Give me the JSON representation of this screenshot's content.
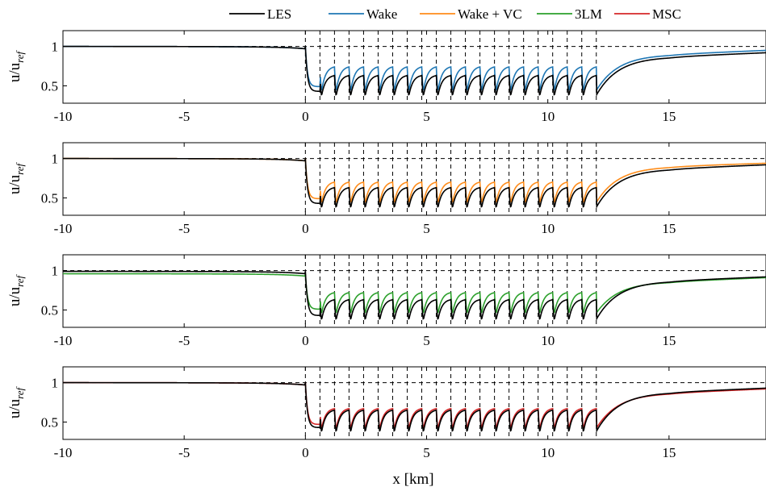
{
  "chart_data": {
    "type": "line",
    "xlabel": "x [km]",
    "ylabel": "u/u",
    "ylabel_sub": "ref",
    "xlim": [
      -10,
      19
    ],
    "ylim": [
      0.28,
      1.2
    ],
    "xticks": [
      "-10",
      "-5",
      "0",
      "5",
      "10",
      "15"
    ],
    "xtick_values": [
      -10,
      -5,
      0,
      5,
      10,
      15
    ],
    "yticks": [
      "0.5",
      "1"
    ],
    "ytick_values": [
      0.5,
      1
    ],
    "reference_line_y": 1.0,
    "turbine_rows_x": [
      0,
      0.6,
      1.2,
      1.8,
      2.4,
      3.0,
      3.6,
      4.2,
      4.8,
      5.4,
      6.0,
      6.6,
      7.2,
      7.8,
      8.4,
      9.0,
      9.6,
      10.2,
      10.8,
      11.4,
      12.0
    ],
    "legend": {
      "placement": "top",
      "entries": [
        {
          "label": "LES",
          "color": "#000000"
        },
        {
          "label": "Wake",
          "color": "#1f77b4"
        },
        {
          "label": "Wake + VC",
          "color": "#ff8c1a"
        },
        {
          "label": "3LM",
          "color": "#2ca02c"
        },
        {
          "label": "MSC",
          "color": "#d62728"
        }
      ]
    },
    "panels": [
      {
        "series": [
          {
            "name": "LES",
            "color": "#000000",
            "trough": 0.38,
            "peak": 0.63,
            "upstream": 1.0,
            "downstream_15": 0.87,
            "downstream_end": 0.92
          },
          {
            "name": "Wake",
            "color": "#1f77b4",
            "trough": 0.44,
            "peak": 0.74,
            "upstream": 1.0,
            "downstream_15": 0.9,
            "downstream_end": 0.95
          }
        ]
      },
      {
        "series": [
          {
            "name": "LES",
            "color": "#000000",
            "trough": 0.38,
            "peak": 0.63,
            "upstream": 1.0,
            "downstream_15": 0.87,
            "downstream_end": 0.92
          },
          {
            "name": "Wake + VC",
            "color": "#ff8c1a",
            "trough": 0.44,
            "peak": 0.7,
            "upstream": 1.0,
            "downstream_15": 0.9,
            "downstream_end": 0.94
          }
        ]
      },
      {
        "series": [
          {
            "name": "LES",
            "color": "#000000",
            "trough": 0.38,
            "peak": 0.63,
            "upstream": 0.99,
            "downstream_15": 0.87,
            "downstream_end": 0.92
          },
          {
            "name": "3LM",
            "color": "#2ca02c",
            "trough": 0.46,
            "peak": 0.72,
            "upstream": 0.96,
            "downstream_15": 0.86,
            "downstream_end": 0.91
          }
        ]
      },
      {
        "series": [
          {
            "name": "LES",
            "color": "#000000",
            "trough": 0.38,
            "peak": 0.65,
            "upstream": 1.0,
            "downstream_15": 0.88,
            "downstream_end": 0.93
          },
          {
            "name": "MSC",
            "color": "#d62728",
            "trough": 0.42,
            "peak": 0.67,
            "upstream": 1.0,
            "downstream_15": 0.87,
            "downstream_end": 0.92
          }
        ]
      }
    ]
  }
}
